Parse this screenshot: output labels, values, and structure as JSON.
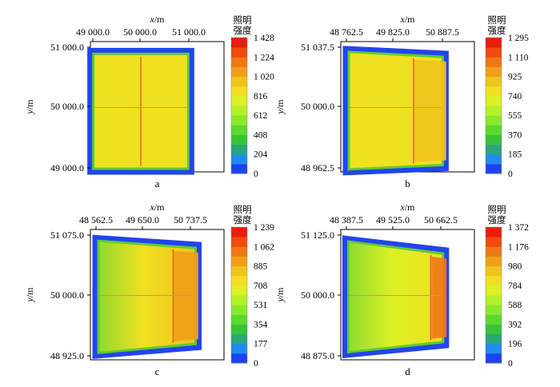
{
  "colors": {
    "frame": "#000000",
    "border_blue": "#2244ee",
    "scale": [
      "#1d42f0",
      "#1e8cf0",
      "#2aa67a",
      "#36c436",
      "#5cd830",
      "#8ae82c",
      "#b4f028",
      "#dcf024",
      "#f0e020",
      "#f0c41c",
      "#f0a018",
      "#f07814",
      "#f04a10",
      "#e81e0c"
    ]
  },
  "chart_data": [
    {
      "type": "heatmap",
      "panel_label": "a",
      "xlabel_var": "x",
      "xlabel_unit": "/m",
      "ylabel_var": "y",
      "ylabel_unit": "/m",
      "x_ticks": [
        "49 000.0",
        "50 000.0",
        "51 000.0"
      ],
      "y_ticks": [
        "51 000.0",
        "50 000.0",
        "49 000.0"
      ],
      "colorbar_title": [
        "照明",
        "强度"
      ],
      "colorbar_ticks": [
        "1 428",
        "1 224",
        "1 020",
        "816",
        "612",
        "408",
        "204",
        "0"
      ],
      "colorbar_range": [
        0,
        1428
      ],
      "region_corners": {
        "top_left": [
          48886,
          50988
        ],
        "top_right": [
          51114,
          50988
        ],
        "bottom_left": [
          48886,
          48888
        ],
        "bottom_right": [
          51114,
          48888
        ]
      },
      "cross_x": 50000,
      "cross_y": 50000,
      "interior_value": 840,
      "bright_band": null,
      "gradient": false
    },
    {
      "type": "heatmap",
      "panel_label": "b",
      "xlabel_var": "x",
      "xlabel_unit": "/m",
      "ylabel_var": "y",
      "ylabel_unit": "/m",
      "x_ticks": [
        "48 762.5",
        "49 825.0",
        "50 887.5"
      ],
      "y_ticks": [
        "51 037.5",
        "50 000.0",
        "48 962.5"
      ],
      "colorbar_title": [
        "照明",
        "强度"
      ],
      "colorbar_ticks": [
        "1 295",
        "1 110",
        "925",
        "740",
        "555",
        "370",
        "185",
        "0"
      ],
      "colorbar_range": [
        0,
        1295
      ],
      "region_corners": {
        "top_left": [
          48683,
          51060
        ],
        "top_right": [
          51027,
          50974
        ],
        "bottom_left": [
          48683,
          48834
        ],
        "bottom_right": [
          51027,
          48910
        ]
      },
      "cross_x": 50250,
      "cross_y": 50000,
      "interior_value": 780,
      "bright_band": {
        "x_from": 50250,
        "x_to": 50970,
        "value": 900
      },
      "gradient": false
    },
    {
      "type": "heatmap",
      "panel_label": "c",
      "xlabel_var": "x",
      "xlabel_unit": "/m",
      "ylabel_var": "y",
      "ylabel_unit": "/m",
      "x_ticks": [
        "48 562.5",
        "49 650.0",
        "50 737.5"
      ],
      "y_ticks": [
        "51 075.0",
        "50 000.0",
        "48 925.0"
      ],
      "colorbar_title": [
        "照明",
        "强度"
      ],
      "colorbar_ticks": [
        "1 239",
        "1 062",
        "885",
        "708",
        "531",
        "354",
        "177",
        "0"
      ],
      "colorbar_range": [
        0,
        1239
      ],
      "region_corners": {
        "top_left": [
          48480,
          51080
        ],
        "top_right": [
          50995,
          50950
        ],
        "bottom_left": [
          48480,
          48870
        ],
        "bottom_right": [
          50995,
          49030
        ]
      },
      "cross_x": 50340,
      "cross_y": 50000,
      "interior_value": 760,
      "bright_band": {
        "x_from": 50360,
        "x_to": 50920,
        "value": 960
      },
      "gradient": true
    },
    {
      "type": "heatmap",
      "panel_label": "d",
      "xlabel_var": "x",
      "xlabel_unit": "/m",
      "ylabel_var": "y",
      "ylabel_unit": "/m",
      "x_ticks": [
        "48 387.5",
        "49 525.0",
        "50 662.5"
      ],
      "y_ticks": [
        "51 125.0",
        "50 000.0",
        "48 875.0"
      ],
      "colorbar_title": [
        "照明",
        "强度"
      ],
      "colorbar_ticks": [
        "1 372",
        "1 176",
        "980",
        "784",
        "588",
        "392",
        "196",
        "0"
      ],
      "colorbar_range": [
        0,
        1372
      ],
      "region_corners": {
        "top_left": [
          48290,
          51120
        ],
        "top_right": [
          50862,
          50890
        ],
        "bottom_left": [
          48290,
          48830
        ],
        "bottom_right": [
          50862,
          49020
        ]
      },
      "cross_x": 50420,
      "cross_y": 50000,
      "interior_value": 760,
      "bright_band": {
        "x_from": 50440,
        "x_to": 50800,
        "value": 1120
      },
      "gradient": true
    }
  ]
}
